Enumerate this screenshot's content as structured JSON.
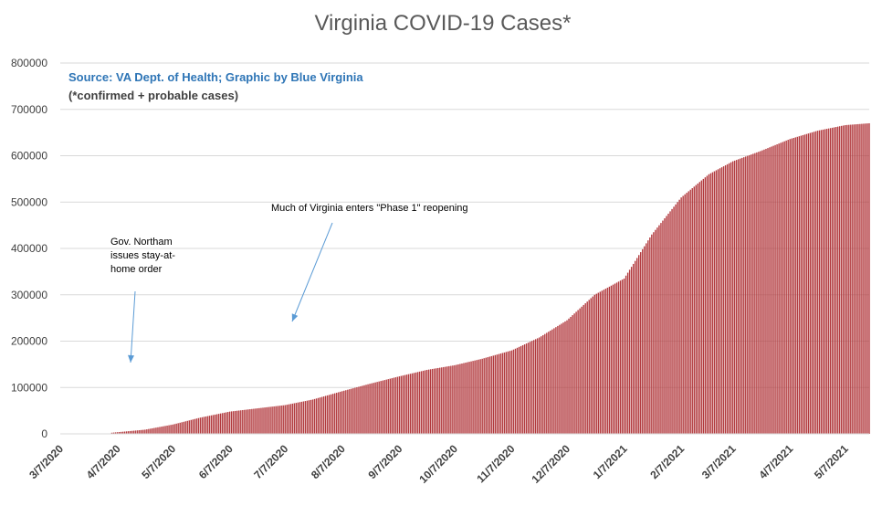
{
  "chart_data": {
    "type": "bar",
    "title": "Virginia COVID-19 Cases*",
    "source_text": "Source: VA Dept. of Health; Graphic by Blue Virginia",
    "note_text": "(*confirmed + probable cases)",
    "xlabel": "",
    "ylabel": "",
    "ylim": [
      0,
      800000
    ],
    "yticks": [
      0,
      100000,
      200000,
      300000,
      400000,
      500000,
      600000,
      700000,
      800000
    ],
    "ytick_labels": [
      "0",
      "100000",
      "200000",
      "300000",
      "400000",
      "500000",
      "600000",
      "700000",
      "800000"
    ],
    "xlim": [
      "2020-03-07",
      "2021-05-20"
    ],
    "xticks": [
      "2020-03-07",
      "2020-04-07",
      "2020-05-07",
      "2020-06-07",
      "2020-07-07",
      "2020-08-07",
      "2020-09-07",
      "2020-10-07",
      "2020-11-07",
      "2020-12-07",
      "2021-01-07",
      "2021-02-07",
      "2021-03-07",
      "2021-04-07",
      "2021-05-07"
    ],
    "xtick_labels": [
      "3/7/2020",
      "4/7/2020",
      "5/7/2020",
      "6/7/2020",
      "7/7/2020",
      "8/7/2020",
      "9/7/2020",
      "10/7/2020",
      "11/7/2020",
      "12/7/2020",
      "1/7/2021",
      "2/7/2021",
      "3/7/2021",
      "4/7/2021",
      "5/7/2021"
    ],
    "grid": true,
    "legend": "none",
    "color": "#b23a3e",
    "series": [
      {
        "x": [
          "2020-03-07",
          "2020-03-22",
          "2020-04-04",
          "2020-04-07",
          "2020-04-22",
          "2020-05-07",
          "2020-05-22",
          "2020-06-07",
          "2020-06-22",
          "2020-07-07",
          "2020-07-22",
          "2020-08-07",
          "2020-08-22",
          "2020-09-07",
          "2020-09-22",
          "2020-10-07",
          "2020-10-22",
          "2020-11-07",
          "2020-11-22",
          "2020-12-07",
          "2020-12-22",
          "2021-01-07",
          "2021-01-22",
          "2021-02-07",
          "2021-02-22",
          "2021-03-07",
          "2021-03-22",
          "2021-04-07",
          "2021-04-22",
          "2021-05-07",
          "2021-05-20"
        ],
        "values": [
          0,
          0,
          2400,
          3500,
          9000,
          20000,
          35000,
          48000,
          55000,
          62000,
          74000,
          92000,
          108000,
          124000,
          138000,
          148000,
          162000,
          180000,
          208000,
          245000,
          300000,
          335000,
          430000,
          510000,
          560000,
          588000,
          610000,
          636000,
          654000,
          666000,
          670000
        ]
      }
    ],
    "annotations": [
      {
        "lines": [
          "Gov. Northam",
          "issues stay-at-",
          "home order"
        ],
        "date": "2020-03-30"
      },
      {
        "lines": [
          "Much of Virginia enters \"Phase 1\" reopening"
        ],
        "date": "2020-05-15"
      }
    ]
  }
}
